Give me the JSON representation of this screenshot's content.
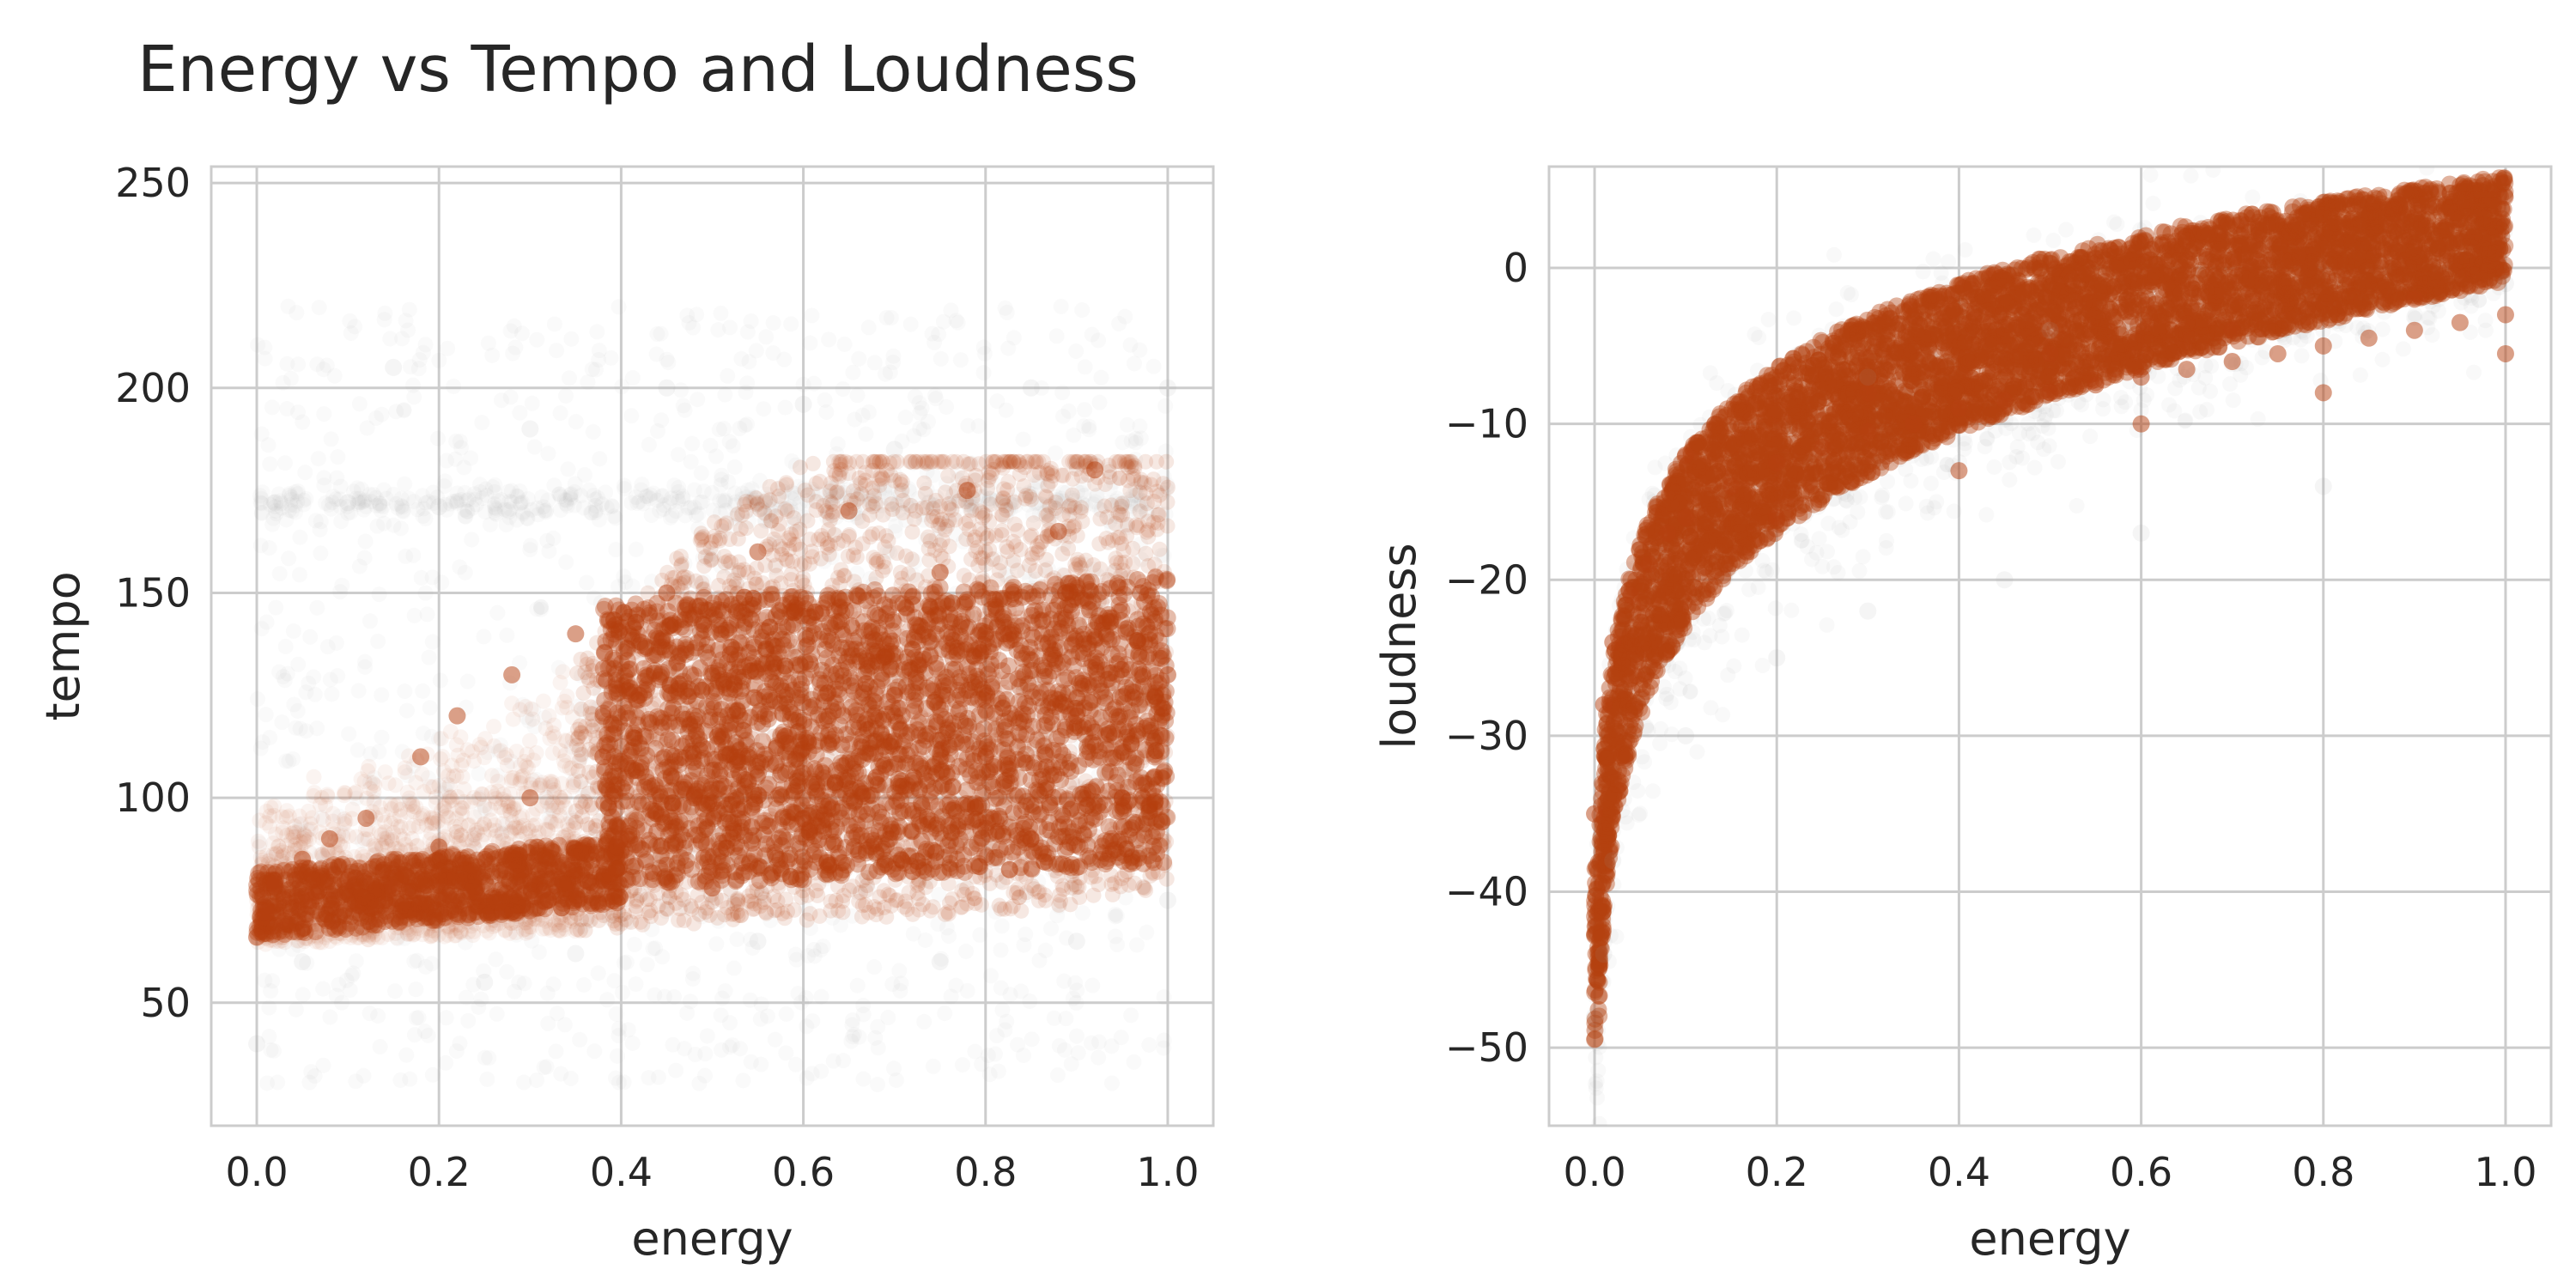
{
  "figure": {
    "title": "Energy vs Tempo and Loudness"
  },
  "colors": {
    "accent": "#b5400f",
    "noise": "#9a9a9a",
    "grid": "#cccccc",
    "text": "#262626"
  },
  "chart_data": [
    {
      "type": "scatter",
      "title": "",
      "xlabel": "energy",
      "ylabel": "tempo",
      "xlim": [
        -0.05,
        1.05
      ],
      "ylim": [
        20,
        254
      ],
      "xticks": [
        0.0,
        0.2,
        0.4,
        0.6,
        0.8,
        1.0
      ],
      "xtick_labels": [
        "0.0",
        "0.2",
        "0.4",
        "0.6",
        "0.8",
        "1.0"
      ],
      "yticks": [
        50,
        100,
        150,
        200,
        250
      ],
      "ytick_labels": [
        "50",
        "100",
        "150",
        "200",
        "250"
      ],
      "grid": true,
      "series": [
        {
          "role": "dense",
          "color": "#b5400f",
          "points": [
            [
              0.0,
              66
            ],
            [
              0.01,
              72
            ],
            [
              0.02,
              79
            ],
            [
              0.03,
              70
            ],
            [
              0.05,
              85
            ],
            [
              0.06,
              75
            ],
            [
              0.08,
              90
            ],
            [
              0.1,
              80
            ],
            [
              0.12,
              95
            ],
            [
              0.15,
              78
            ],
            [
              0.18,
              110
            ],
            [
              0.2,
              88
            ],
            [
              0.22,
              120
            ],
            [
              0.25,
              85
            ],
            [
              0.28,
              130
            ],
            [
              0.3,
              100
            ],
            [
              0.32,
              75
            ],
            [
              0.35,
              140
            ],
            [
              0.38,
              110
            ],
            [
              0.4,
              90
            ],
            [
              0.42,
              125
            ],
            [
              0.45,
              150
            ],
            [
              0.48,
              100
            ],
            [
              0.5,
              78
            ],
            [
              0.52,
              135
            ],
            [
              0.55,
              160
            ],
            [
              0.58,
              115
            ],
            [
              0.6,
              95
            ],
            [
              0.62,
              145
            ],
            [
              0.65,
              170
            ],
            [
              0.68,
              105
            ],
            [
              0.7,
              125
            ],
            [
              0.72,
              82
            ],
            [
              0.75,
              155
            ],
            [
              0.78,
              175
            ],
            [
              0.8,
              110
            ],
            [
              0.82,
              140
            ],
            [
              0.85,
              90
            ],
            [
              0.88,
              165
            ],
            [
              0.9,
              120
            ],
            [
              0.92,
              180
            ],
            [
              0.95,
              100
            ],
            [
              0.97,
              150
            ],
            [
              1.0,
              130
            ]
          ]
        },
        {
          "role": "sparse",
          "color": "#9a9a9a",
          "points": [
            [
              0.0,
              40
            ],
            [
              0.02,
              172
            ],
            [
              0.05,
              60
            ],
            [
              0.1,
              172
            ],
            [
              0.15,
              205
            ],
            [
              0.2,
              171
            ],
            [
              0.25,
              55
            ],
            [
              0.3,
              190
            ],
            [
              0.35,
              62
            ],
            [
              0.45,
              200
            ],
            [
              0.55,
              65
            ],
            [
              0.6,
              196
            ],
            [
              0.7,
              185
            ],
            [
              0.75,
              60
            ],
            [
              0.85,
              200
            ],
            [
              0.9,
              65
            ],
            [
              1.0,
              200
            ],
            [
              1.0,
              75
            ]
          ]
        }
      ]
    },
    {
      "type": "scatter",
      "title": "",
      "xlabel": "energy",
      "ylabel": "loudness",
      "xlim": [
        -0.05,
        1.05
      ],
      "ylim": [
        -55,
        6.5
      ],
      "xticks": [
        0.0,
        0.2,
        0.4,
        0.6,
        0.8,
        1.0
      ],
      "xtick_labels": [
        "0.0",
        "0.2",
        "0.4",
        "0.6",
        "0.8",
        "1.0"
      ],
      "yticks": [
        -50,
        -40,
        -30,
        -20,
        -10,
        0
      ],
      "ytick_labels": [
        "−50",
        "−40",
        "−30",
        "−20",
        "−10",
        "0"
      ],
      "grid": true,
      "series": [
        {
          "role": "dense",
          "color": "#b5400f",
          "points": [
            [
              0.0,
              -35
            ],
            [
              0.01,
              -28
            ],
            [
              0.02,
              -24
            ],
            [
              0.04,
              -21
            ],
            [
              0.06,
              -19
            ],
            [
              0.08,
              -17
            ],
            [
              0.1,
              -16
            ],
            [
              0.15,
              -14
            ],
            [
              0.2,
              -12.5
            ],
            [
              0.25,
              -11.5
            ],
            [
              0.3,
              -10.5
            ],
            [
              0.35,
              -10
            ],
            [
              0.4,
              -9
            ],
            [
              0.45,
              -8.5
            ],
            [
              0.5,
              -8
            ],
            [
              0.55,
              -7.5
            ],
            [
              0.6,
              -7
            ],
            [
              0.65,
              -6.5
            ],
            [
              0.7,
              -6
            ],
            [
              0.75,
              -5.5
            ],
            [
              0.8,
              -5
            ],
            [
              0.85,
              -4.5
            ],
            [
              0.9,
              -4
            ],
            [
              0.95,
              -3.5
            ],
            [
              1.0,
              -3
            ],
            [
              0.2,
              -16
            ],
            [
              0.4,
              -13
            ],
            [
              0.6,
              -10
            ],
            [
              0.8,
              -8
            ],
            [
              1.0,
              -5.5
            ],
            [
              0.1,
              -12
            ],
            [
              0.3,
              -8
            ],
            [
              0.5,
              -5.5
            ],
            [
              0.7,
              -4
            ],
            [
              0.9,
              -2
            ]
          ]
        },
        {
          "role": "sparse",
          "color": "#9a9a9a",
          "points": [
            [
              0.0,
              -48
            ],
            [
              0.01,
              -44
            ],
            [
              0.02,
              -38
            ],
            [
              0.1,
              -30
            ],
            [
              0.2,
              -25
            ],
            [
              0.3,
              -22
            ],
            [
              0.45,
              -20
            ],
            [
              0.6,
              -17
            ],
            [
              0.8,
              -14
            ],
            [
              1.0,
              -1
            ],
            [
              0.3,
              -7
            ],
            [
              0.5,
              -4
            ]
          ]
        }
      ]
    }
  ]
}
